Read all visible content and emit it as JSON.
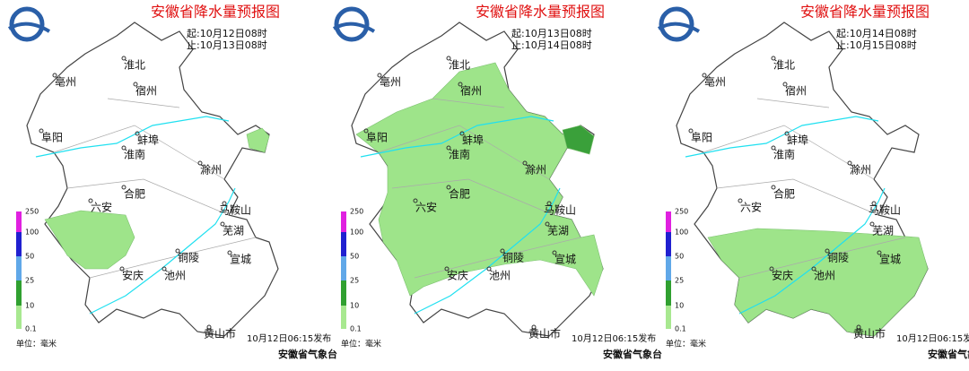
{
  "panels": [
    {
      "title": "安徽省降水量预报图",
      "start": "起:10月12日08时",
      "end": "止:10月13日08时"
    },
    {
      "title": "安徽省降水量预报图",
      "start": "起:10月13日08时",
      "end": "止:10月14日08时"
    },
    {
      "title": "安徽省降水量预报图",
      "start": "起:10月14日08时",
      "end": "止:10月15日08时"
    }
  ],
  "cities": [
    "淮北",
    "宿州",
    "亳州",
    "阜阳",
    "蚌埠",
    "淮南",
    "滁州",
    "合肥",
    "六安",
    "马鞍山",
    "芜湖",
    "铜陵",
    "宣城",
    "安庆",
    "池州",
    "黄山市"
  ],
  "legend_ticks": [
    "250",
    "100",
    "50",
    "25",
    "10",
    "0.1"
  ],
  "unit": "单位：毫米",
  "issued": "10月12日06:15发布",
  "agency": "安徽省气象台"
}
